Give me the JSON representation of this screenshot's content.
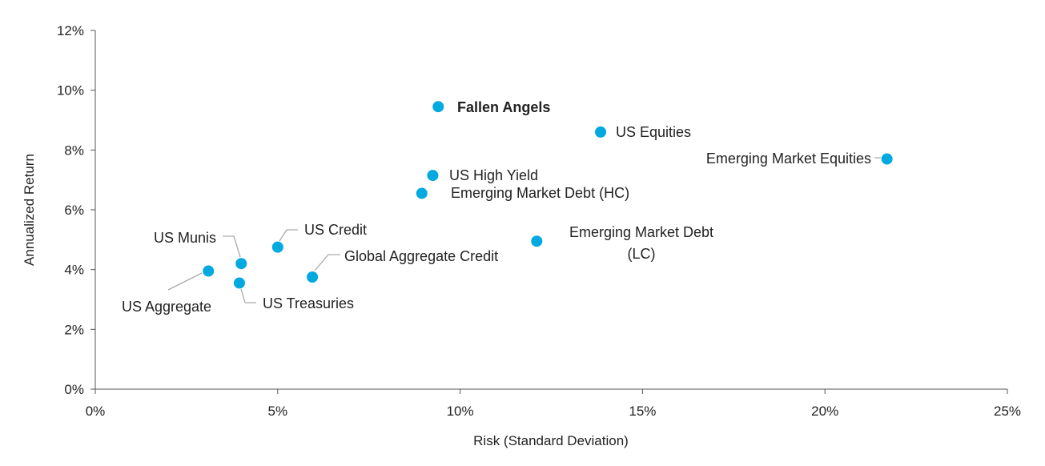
{
  "chart_data": {
    "type": "scatter",
    "title": "",
    "xlabel": "Risk (Standard Deviation)",
    "ylabel": "Annualized Return",
    "xlim": [
      0,
      25
    ],
    "ylim": [
      0,
      12
    ],
    "x_ticks": [
      "0%",
      "5%",
      "10%",
      "15%",
      "20%",
      "25%"
    ],
    "y_ticks": [
      "0%",
      "2%",
      "4%",
      "6%",
      "8%",
      "10%",
      "12%"
    ],
    "grid": false,
    "marker_color": "#00a9e0",
    "points": [
      {
        "name": "Fallen Angels",
        "x": 9.4,
        "y": 9.45,
        "bold": true
      },
      {
        "name": "US Equities",
        "x": 13.85,
        "y": 8.6
      },
      {
        "name": "Emerging Market Equities",
        "x": 21.7,
        "y": 7.7
      },
      {
        "name": "US High Yield",
        "x": 9.25,
        "y": 7.15
      },
      {
        "name": "Emerging Market Debt (HC)",
        "x": 8.95,
        "y": 6.55
      },
      {
        "name": "Emerging Market Debt (LC)",
        "x": 12.1,
        "y": 4.95
      },
      {
        "name": "US Credit",
        "x": 5.0,
        "y": 4.75
      },
      {
        "name": "US Munis",
        "x": 4.0,
        "y": 4.2
      },
      {
        "name": "Global Aggregate Credit",
        "x": 5.95,
        "y": 3.75
      },
      {
        "name": "US Aggregate",
        "x": 3.1,
        "y": 3.95
      },
      {
        "name": "US Treasuries",
        "x": 3.95,
        "y": 3.55
      }
    ]
  }
}
